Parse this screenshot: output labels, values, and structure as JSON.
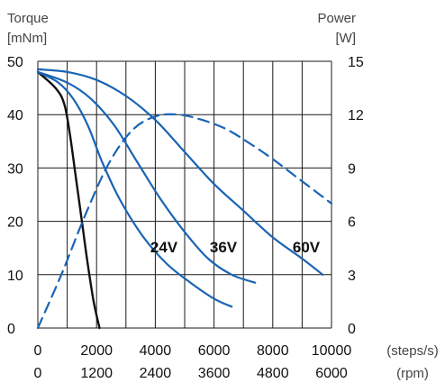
{
  "chart_data": {
    "type": "line",
    "left_axis": {
      "title": "Torque",
      "unit": "[mNm]",
      "ylim": [
        0,
        50
      ],
      "ticks": [
        "0",
        "10",
        "20",
        "30",
        "40",
        "50"
      ]
    },
    "right_axis": {
      "title": "Power",
      "unit": "[W]",
      "ylim": [
        0,
        15
      ],
      "ticks": [
        "0",
        "3",
        "6",
        "9",
        "12",
        "15"
      ]
    },
    "x_axis_steps": {
      "unit": "(steps/s)",
      "xlim": [
        0,
        10000
      ],
      "ticks": [
        "0",
        "2000",
        "4000",
        "6000",
        "8000",
        "10000"
      ]
    },
    "x_axis_rpm": {
      "unit": "(rpm)",
      "ticks": [
        "0",
        "1200",
        "2400",
        "3600",
        "4800",
        "6000"
      ]
    },
    "grid": true,
    "series": [
      {
        "kind": "torque",
        "axis": "left",
        "color": "#111111",
        "x": [
          0,
          600,
          900,
          1100,
          1300,
          1500,
          1700,
          1900,
          2100
        ],
        "y": [
          48,
          45,
          42,
          36,
          28,
          20,
          12,
          5,
          0
        ]
      },
      {
        "kind": "torque",
        "axis": "left",
        "color": "#1a64b4",
        "label": "24V",
        "x": [
          0,
          700,
          1200,
          1700,
          2200,
          2800,
          3600,
          4400,
          5200,
          6000,
          6600
        ],
        "y": [
          48,
          46,
          43,
          38,
          31,
          24,
          17,
          12,
          8.5,
          5.5,
          4
        ]
      },
      {
        "kind": "torque",
        "axis": "left",
        "color": "#1a64b4",
        "label": "36V",
        "x": [
          0,
          1000,
          1800,
          2600,
          3400,
          4200,
          5000,
          5800,
          6600,
          7400
        ],
        "y": [
          48,
          46,
          43,
          38,
          31,
          24,
          18,
          13,
          10,
          8.5
        ]
      },
      {
        "kind": "torque",
        "axis": "left",
        "color": "#1a64b4",
        "label": "60V",
        "x": [
          0,
          1000,
          2000,
          3000,
          4000,
          5000,
          6000,
          7000,
          8000,
          9000,
          9700
        ],
        "y": [
          48.5,
          48,
          46.5,
          43.5,
          39,
          33,
          27,
          22,
          17,
          13,
          10
        ]
      },
      {
        "kind": "power",
        "axis": "right",
        "color": "#1a64b4",
        "dashed": true,
        "x": [
          0,
          800,
          1600,
          2400,
          3200,
          4000,
          4800,
          5600,
          6400,
          7200,
          8000,
          8800,
          9600,
          10000
        ],
        "y": [
          0,
          3,
          6.3,
          9.2,
          11.1,
          11.9,
          12.0,
          11.7,
          11.2,
          10.4,
          9.5,
          8.5,
          7.5,
          7.0
        ]
      }
    ]
  }
}
